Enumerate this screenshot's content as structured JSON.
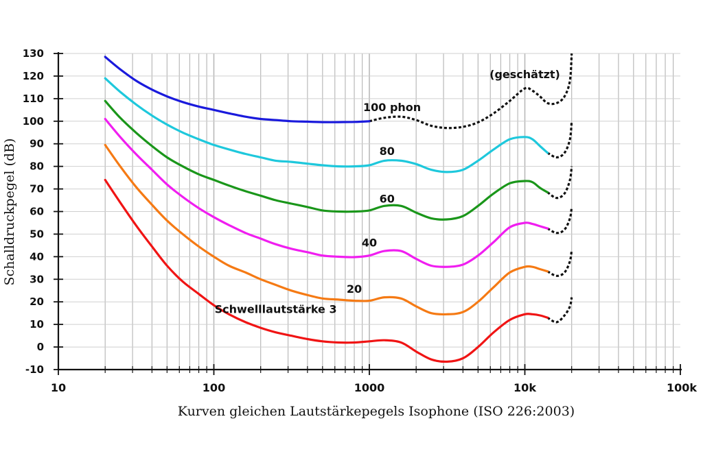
{
  "chart_data": {
    "type": "line",
    "title": "",
    "xlabel": "Kurven gleichen Lautstärkepegels Isophone (ISO 226:2003)",
    "ylabel": "Schalldruckpegel (dB)",
    "x_scale": "log",
    "xlim": [
      10,
      100000
    ],
    "ylim": [
      -10,
      130
    ],
    "grid": true,
    "x_ticks": [
      {
        "value": 10,
        "label": "10"
      },
      {
        "value": 100,
        "label": "100"
      },
      {
        "value": 1000,
        "label": "1000"
      },
      {
        "value": 10000,
        "label": "10k"
      },
      {
        "value": 100000,
        "label": "100k"
      }
    ],
    "y_ticks": [
      {
        "value": 130,
        "label": "130"
      },
      {
        "value": 120,
        "label": "120"
      },
      {
        "value": 110,
        "label": "110"
      },
      {
        "value": 100,
        "label": "100"
      },
      {
        "value": 90,
        "label": "90"
      },
      {
        "value": 80,
        "label": "80"
      },
      {
        "value": 70,
        "label": "70"
      },
      {
        "value": 60,
        "label": "60"
      },
      {
        "value": 50,
        "label": "50"
      },
      {
        "value": 40,
        "label": "40"
      },
      {
        "value": 30,
        "label": "30"
      },
      {
        "value": 20,
        "label": "20"
      },
      {
        "value": 10,
        "label": "10"
      },
      {
        "value": 0,
        "label": "0"
      },
      {
        "value": -10,
        "label": "-10"
      }
    ],
    "series": [
      {
        "name": "100 phon",
        "color": "#1a1adc",
        "points": [
          [
            20,
            128.5
          ],
          [
            25,
            123
          ],
          [
            31.5,
            118
          ],
          [
            40,
            114
          ],
          [
            50,
            111
          ],
          [
            63,
            108.5
          ],
          [
            80,
            106.5
          ],
          [
            100,
            105
          ],
          [
            125,
            103.5
          ],
          [
            160,
            102
          ],
          [
            200,
            101
          ],
          [
            250,
            100.5
          ],
          [
            315,
            100
          ],
          [
            400,
            99.8
          ],
          [
            500,
            99.6
          ],
          [
            630,
            99.6
          ],
          [
            800,
            99.7
          ],
          [
            1000,
            100
          ]
        ],
        "dashed_points": [
          [
            1000,
            100
          ],
          [
            1250,
            101.5
          ],
          [
            1600,
            102
          ],
          [
            2000,
            100.5
          ],
          [
            2500,
            98
          ],
          [
            3150,
            97
          ],
          [
            4000,
            97.5
          ],
          [
            5000,
            99.5
          ],
          [
            6300,
            103.5
          ],
          [
            8000,
            109
          ],
          [
            10000,
            114.5
          ],
          [
            11200,
            113.5
          ],
          [
            12500,
            111
          ],
          [
            14000,
            108
          ],
          [
            16000,
            108
          ],
          [
            18000,
            111
          ],
          [
            19500,
            118
          ],
          [
            20000,
            130
          ]
        ]
      },
      {
        "name": "80",
        "color": "#1ec8dc",
        "points": [
          [
            20,
            119
          ],
          [
            25,
            113
          ],
          [
            31.5,
            107.5
          ],
          [
            40,
            102.5
          ],
          [
            50,
            98.5
          ],
          [
            63,
            95
          ],
          [
            80,
            92
          ],
          [
            100,
            89.5
          ],
          [
            125,
            87.5
          ],
          [
            160,
            85.5
          ],
          [
            200,
            84
          ],
          [
            250,
            82.5
          ],
          [
            315,
            82
          ],
          [
            400,
            81.2
          ],
          [
            500,
            80.5
          ],
          [
            630,
            80
          ],
          [
            800,
            80
          ],
          [
            1000,
            80.5
          ],
          [
            1250,
            82.5
          ],
          [
            1600,
            82.5
          ],
          [
            2000,
            81
          ],
          [
            2500,
            78.5
          ],
          [
            3150,
            77.5
          ],
          [
            4000,
            78.5
          ],
          [
            5000,
            82.5
          ],
          [
            6300,
            87.5
          ],
          [
            8000,
            92
          ],
          [
            10000,
            93
          ],
          [
            11200,
            92
          ],
          [
            12500,
            89
          ],
          [
            14000,
            86
          ]
        ],
        "dashed_points": [
          [
            14000,
            86
          ],
          [
            16000,
            84
          ],
          [
            18000,
            86
          ],
          [
            19500,
            92
          ],
          [
            20000,
            100
          ]
        ]
      },
      {
        "name": "60",
        "color": "#1a961a",
        "points": [
          [
            20,
            109
          ],
          [
            25,
            101.5
          ],
          [
            31.5,
            95
          ],
          [
            40,
            89
          ],
          [
            50,
            84
          ],
          [
            63,
            80
          ],
          [
            80,
            76.5
          ],
          [
            100,
            74
          ],
          [
            125,
            71.5
          ],
          [
            160,
            69
          ],
          [
            200,
            67
          ],
          [
            250,
            65
          ],
          [
            315,
            63.5
          ],
          [
            400,
            62
          ],
          [
            500,
            60.5
          ],
          [
            630,
            60
          ],
          [
            800,
            60
          ],
          [
            1000,
            60.5
          ],
          [
            1250,
            62.5
          ],
          [
            1600,
            62.5
          ],
          [
            2000,
            59.5
          ],
          [
            2500,
            57
          ],
          [
            3150,
            56.5
          ],
          [
            4000,
            58
          ],
          [
            5000,
            62.5
          ],
          [
            6300,
            68
          ],
          [
            8000,
            72.5
          ],
          [
            10000,
            73.5
          ],
          [
            11200,
            73
          ],
          [
            12500,
            70.5
          ],
          [
            14000,
            68.5
          ]
        ],
        "dashed_points": [
          [
            14000,
            68.5
          ],
          [
            16000,
            66
          ],
          [
            18000,
            68
          ],
          [
            19500,
            74
          ],
          [
            20000,
            80
          ]
        ]
      },
      {
        "name": "40",
        "color": "#f01ef0",
        "points": [
          [
            20,
            101
          ],
          [
            25,
            93
          ],
          [
            31.5,
            85.5
          ],
          [
            40,
            78.5
          ],
          [
            50,
            72
          ],
          [
            63,
            66.5
          ],
          [
            80,
            61.5
          ],
          [
            100,
            57.5
          ],
          [
            125,
            54
          ],
          [
            160,
            50.5
          ],
          [
            200,
            48
          ],
          [
            250,
            45.5
          ],
          [
            315,
            43.5
          ],
          [
            400,
            42
          ],
          [
            500,
            40.5
          ],
          [
            630,
            40
          ],
          [
            800,
            39.8
          ],
          [
            1000,
            40.5
          ],
          [
            1250,
            42.5
          ],
          [
            1600,
            42.5
          ],
          [
            2000,
            39
          ],
          [
            2500,
            36
          ],
          [
            3150,
            35.5
          ],
          [
            4000,
            36.5
          ],
          [
            5000,
            40.5
          ],
          [
            6300,
            46.5
          ],
          [
            8000,
            53
          ],
          [
            10000,
            55
          ],
          [
            11200,
            54.5
          ],
          [
            12500,
            53.5
          ],
          [
            14000,
            52.5
          ]
        ],
        "dashed_points": [
          [
            14000,
            52.5
          ],
          [
            16000,
            50.5
          ],
          [
            18000,
            52
          ],
          [
            19500,
            57
          ],
          [
            20000,
            62
          ]
        ]
      },
      {
        "name": "20",
        "color": "#f57a14",
        "points": [
          [
            20,
            89.5
          ],
          [
            25,
            80
          ],
          [
            31.5,
            71
          ],
          [
            40,
            63
          ],
          [
            50,
            56
          ],
          [
            63,
            50
          ],
          [
            80,
            44.5
          ],
          [
            100,
            40
          ],
          [
            125,
            36
          ],
          [
            160,
            33
          ],
          [
            200,
            30
          ],
          [
            250,
            27.5
          ],
          [
            315,
            25
          ],
          [
            400,
            23
          ],
          [
            500,
            21.5
          ],
          [
            630,
            21
          ],
          [
            800,
            20.5
          ],
          [
            1000,
            20.5
          ],
          [
            1250,
            22
          ],
          [
            1600,
            21.5
          ],
          [
            2000,
            18
          ],
          [
            2500,
            15
          ],
          [
            3150,
            14.5
          ],
          [
            4000,
            15.5
          ],
          [
            5000,
            20
          ],
          [
            6300,
            26.5
          ],
          [
            8000,
            33
          ],
          [
            10000,
            35.5
          ],
          [
            11200,
            35.5
          ],
          [
            12500,
            34.5
          ],
          [
            14000,
            33.5
          ]
        ],
        "dashed_points": [
          [
            14000,
            33.5
          ],
          [
            16000,
            31.5
          ],
          [
            18000,
            33
          ],
          [
            19500,
            38
          ],
          [
            20000,
            43
          ]
        ]
      },
      {
        "name": "Schwelllautstärke 3",
        "color": "#f01414",
        "points": [
          [
            20,
            74
          ],
          [
            25,
            64
          ],
          [
            31.5,
            54
          ],
          [
            40,
            44.5
          ],
          [
            50,
            36
          ],
          [
            63,
            29
          ],
          [
            80,
            23.5
          ],
          [
            100,
            18.5
          ],
          [
            125,
            14.5
          ],
          [
            160,
            11
          ],
          [
            200,
            8.5
          ],
          [
            250,
            6.5
          ],
          [
            315,
            5
          ],
          [
            400,
            3.5
          ],
          [
            500,
            2.5
          ],
          [
            630,
            2
          ],
          [
            800,
            2
          ],
          [
            1000,
            2.5
          ],
          [
            1250,
            3
          ],
          [
            1600,
            2
          ],
          [
            2000,
            -2
          ],
          [
            2500,
            -5.5
          ],
          [
            3150,
            -6.5
          ],
          [
            4000,
            -5
          ],
          [
            5000,
            0
          ],
          [
            6300,
            6.5
          ],
          [
            8000,
            12
          ],
          [
            10000,
            14.5
          ],
          [
            11200,
            14.5
          ],
          [
            12500,
            14
          ],
          [
            14000,
            13
          ]
        ],
        "dashed_points": [
          [
            14000,
            13
          ],
          [
            16000,
            11
          ],
          [
            18000,
            14
          ],
          [
            19500,
            18
          ],
          [
            20000,
            22
          ]
        ]
      }
    ],
    "annotations": [
      {
        "text": "(geschätzt)",
        "x": 10000,
        "y": 119
      },
      {
        "text": "100 phon",
        "x": 1400,
        "y": 104.5
      },
      {
        "text": "80",
        "x": 1300,
        "y": 85
      },
      {
        "text": "60",
        "x": 1300,
        "y": 64
      },
      {
        "text": "40",
        "x": 1000,
        "y": 44.5
      },
      {
        "text": "20",
        "x": 800,
        "y": 24
      },
      {
        "text": "Schwelllautstärke 3",
        "x": 250,
        "y": 15
      }
    ]
  }
}
